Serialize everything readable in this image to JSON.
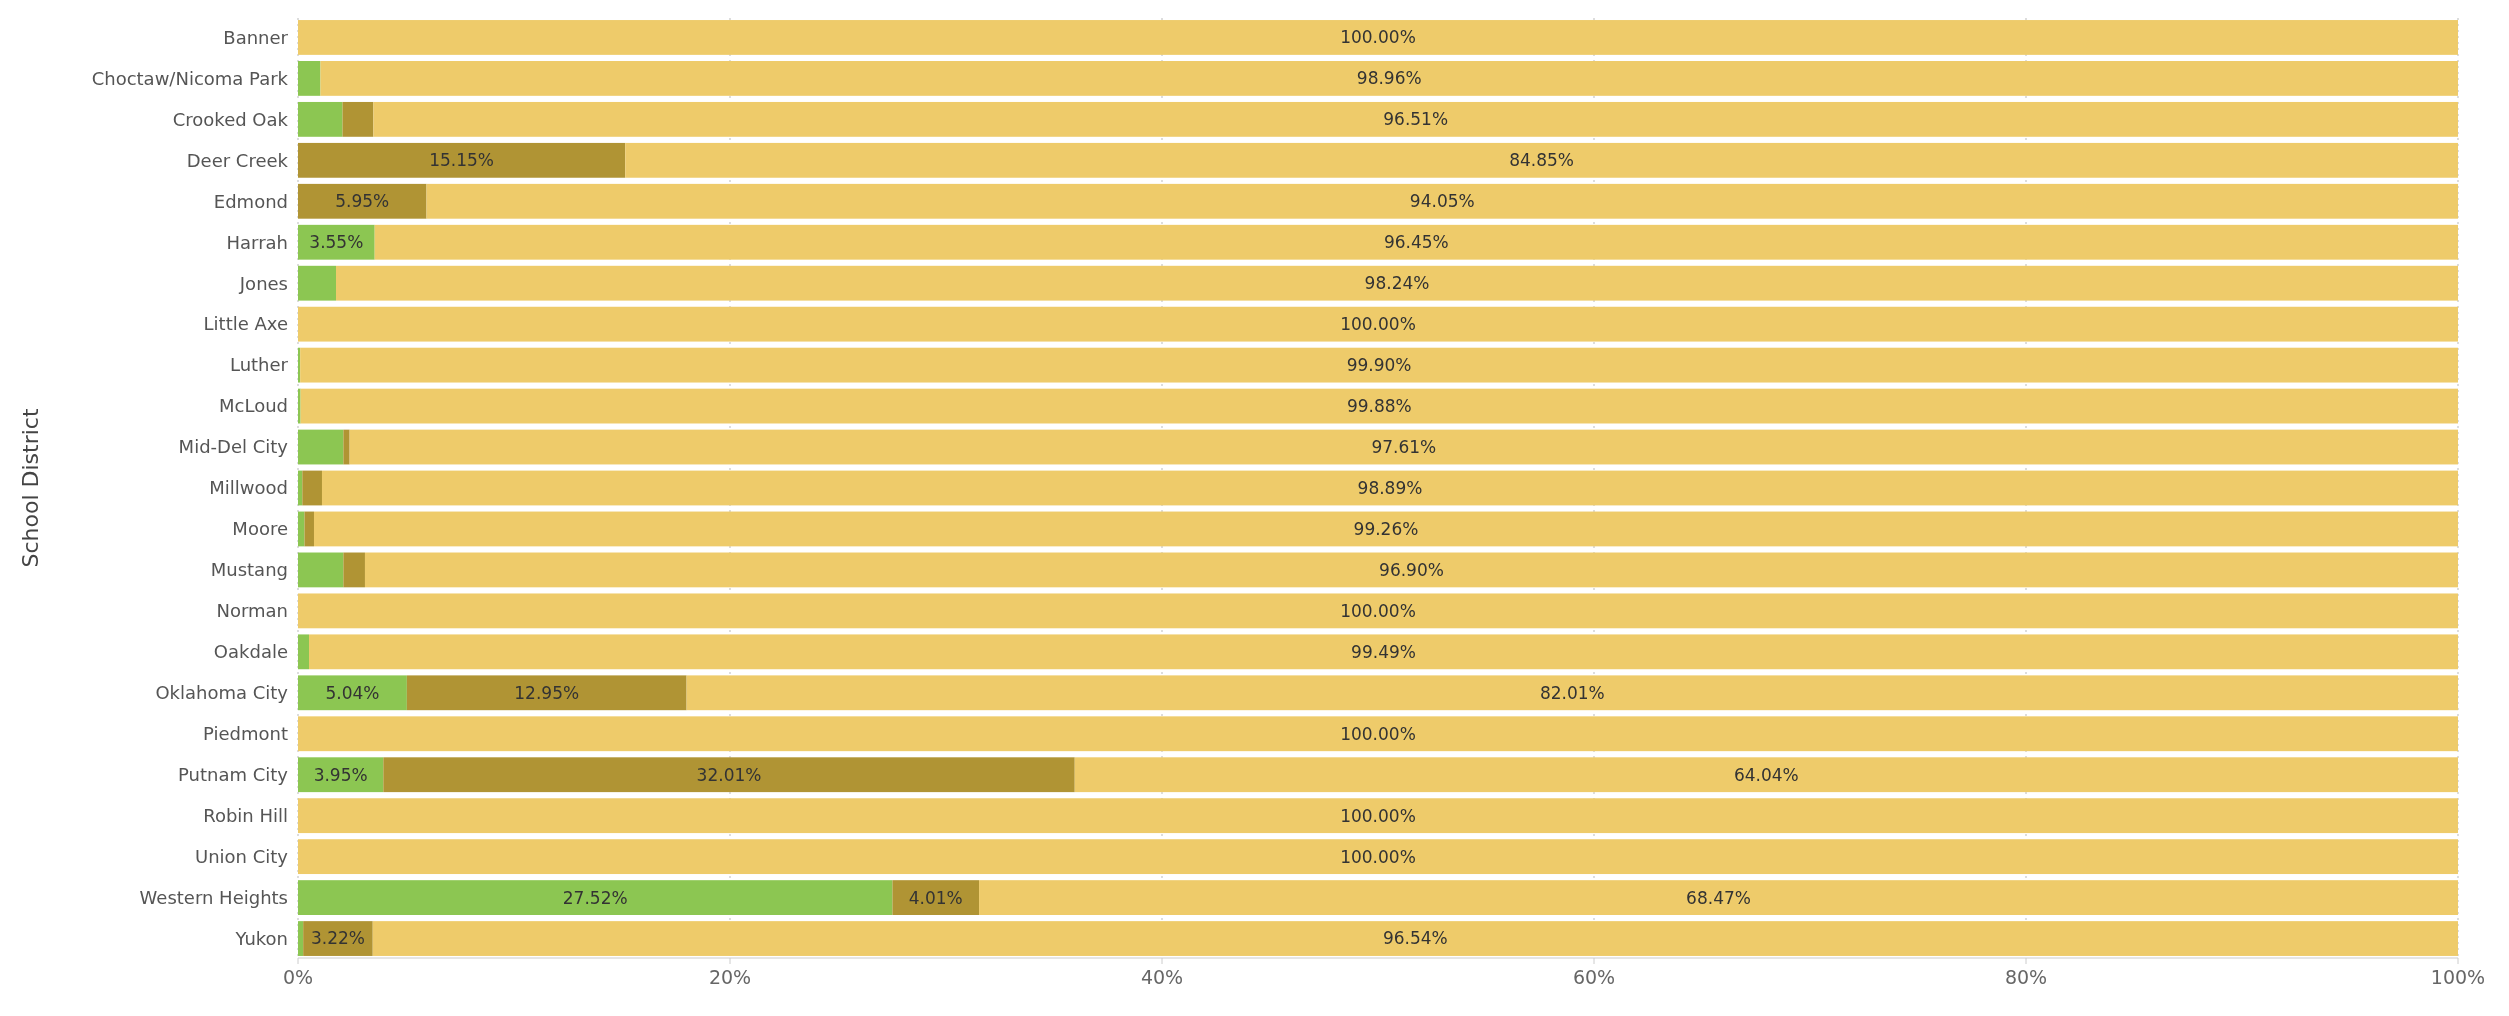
{
  "chart_data": {
    "type": "bar",
    "orientation": "horizontal",
    "stacked": true,
    "ylabel": "School District",
    "categories": [
      "Banner",
      "Choctaw/Nicoma Park",
      "Crooked Oak",
      "Deer Creek",
      "Edmond",
      "Harrah",
      "Jones",
      "Little Axe",
      "Luther",
      "McLoud",
      "Mid-Del City",
      "Millwood",
      "Moore",
      "Mustang",
      "Norman",
      "Oakdale",
      "Oklahoma City",
      "Piedmont",
      "Putnam City",
      "Robin Hill",
      "Union City",
      "Western Heights",
      "Yukon"
    ],
    "series": [
      {
        "color": "#8cc652",
        "values": [
          0,
          1.04,
          2.06,
          0,
          0,
          3.55,
          1.76,
          0,
          0.1,
          0.12,
          2.1,
          0.2,
          0.3,
          2.1,
          0,
          0.51,
          5.04,
          0,
          3.95,
          0,
          0,
          27.52,
          0.24
        ],
        "value_labels": [
          null,
          null,
          null,
          null,
          null,
          "3.55%",
          null,
          null,
          null,
          null,
          null,
          null,
          null,
          null,
          null,
          null,
          "5.04%",
          null,
          "3.95%",
          null,
          null,
          "27.52%",
          null
        ]
      },
      {
        "color": "#b09434",
        "values": [
          0,
          0,
          1.43,
          15.15,
          5.95,
          0,
          0,
          0,
          0,
          0,
          0.29,
          0.91,
          0.44,
          1.0,
          0,
          0,
          12.95,
          0,
          32.01,
          0,
          0,
          4.01,
          3.22
        ],
        "value_labels": [
          null,
          null,
          null,
          "15.15%",
          "5.95%",
          null,
          null,
          null,
          null,
          null,
          null,
          null,
          null,
          null,
          null,
          null,
          "12.95%",
          null,
          "32.01%",
          null,
          null,
          "4.01%",
          "3.22%"
        ]
      },
      {
        "color": "#eecb6a",
        "values": [
          100,
          98.96,
          96.51,
          84.85,
          94.05,
          96.45,
          98.24,
          100,
          99.9,
          99.88,
          97.61,
          98.89,
          99.26,
          96.9,
          100,
          99.49,
          82.01,
          100,
          64.04,
          100,
          100,
          68.47,
          96.54
        ],
        "value_labels": [
          "100.00%",
          "98.96%",
          "96.51%",
          "84.85%",
          "94.05%",
          "96.45%",
          "98.24%",
          "100.00%",
          "99.90%",
          "99.88%",
          "97.61%",
          "98.89%",
          "99.26%",
          "96.90%",
          "100.00%",
          "99.49%",
          "82.01%",
          "100.00%",
          "64.04%",
          "100.00%",
          "100.00%",
          "68.47%",
          "96.54%"
        ]
      }
    ],
    "xlim": [
      0,
      100
    ],
    "xticks": [
      {
        "value": 0,
        "label": "0%"
      },
      {
        "value": 20,
        "label": "20%"
      },
      {
        "value": 40,
        "label": "40%"
      },
      {
        "value": 60,
        "label": "60%"
      },
      {
        "value": 80,
        "label": "80%"
      },
      {
        "value": 100,
        "label": "100%"
      }
    ],
    "grid": "x"
  }
}
